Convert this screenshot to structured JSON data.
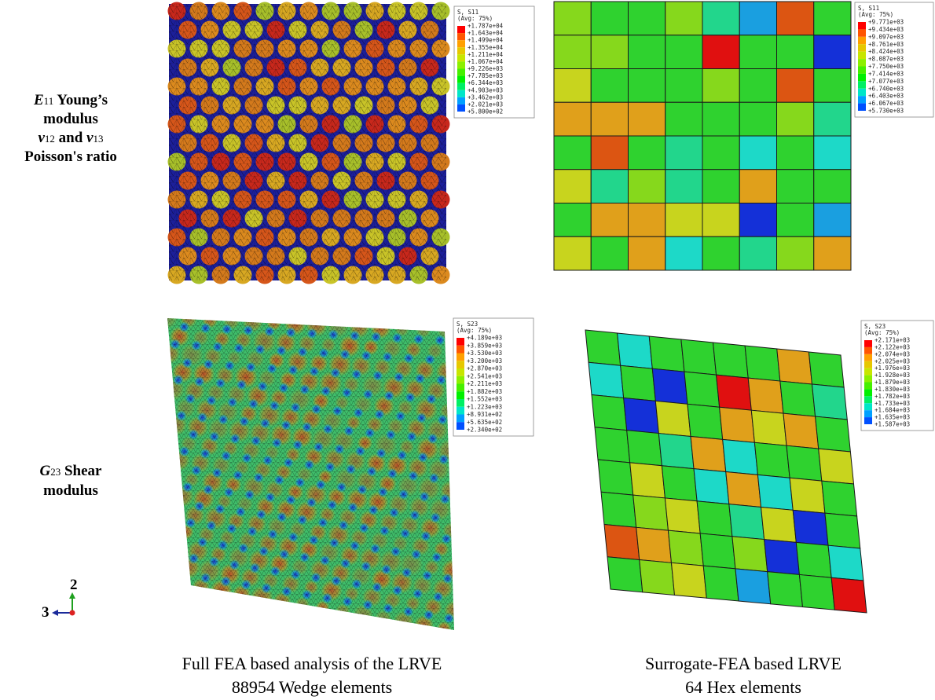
{
  "row_labels": [
    {
      "lines": [
        [
          "E",
          "11",
          " Young’s"
        ],
        [
          "modulus"
        ],
        [
          "ν",
          "12",
          " and ",
          "ν",
          "13"
        ],
        [
          "Poisson's ratio"
        ]
      ]
    },
    {
      "lines": [
        [
          "G",
          "23",
          " Shear"
        ],
        [
          "modulus"
        ]
      ]
    }
  ],
  "legends": [
    {
      "title": "S, S11",
      "subtitle": "(Avg: 75%)",
      "labels": [
        "+1.787e+04",
        "+1.643e+04",
        "+1.499e+04",
        "+1.355e+04",
        "+1.211e+04",
        "+1.067e+04",
        "+9.226e+03",
        "+7.785e+03",
        "+6.344e+03",
        "+4.903e+03",
        "+3.462e+03",
        "+2.021e+03",
        "+5.800e+02"
      ]
    },
    {
      "title": "S, S11",
      "subtitle": "(Avg: 75%)",
      "labels": [
        "+9.771e+03",
        "+9.434e+03",
        "+9.097e+03",
        "+8.761e+03",
        "+8.424e+03",
        "+8.087e+03",
        "+7.750e+03",
        "+7.414e+03",
        "+7.077e+03",
        "+6.740e+03",
        "+6.403e+03",
        "+6.067e+03",
        "+5.730e+03"
      ]
    },
    {
      "title": "S, S23",
      "subtitle": "(Avg: 75%)",
      "labels": [
        "+4.189e+03",
        "+3.859e+03",
        "+3.530e+03",
        "+3.200e+03",
        "+2.870e+03",
        "+2.541e+03",
        "+2.211e+03",
        "+1.882e+03",
        "+1.552e+03",
        "+1.223e+03",
        "+8.931e+02",
        "+5.635e+02",
        "+2.340e+02"
      ]
    },
    {
      "title": "S, S23",
      "subtitle": "(Avg: 75%)",
      "labels": [
        "+2.171e+03",
        "+2.122e+03",
        "+2.074e+03",
        "+2.025e+03",
        "+1.976e+03",
        "+1.928e+03",
        "+1.879e+03",
        "+1.830e+03",
        "+1.782e+03",
        "+1.733e+03",
        "+1.684e+03",
        "+1.635e+03",
        "+1.587e+03"
      ]
    }
  ],
  "axis_triad": {
    "up": "2",
    "left": "3"
  },
  "captions": [
    {
      "lines": [
        "Full FEA based analysis of the LRVE",
        "88954 Wedge elements"
      ]
    },
    {
      "lines": [
        "Surrogate-FEA based LRVE",
        "64 Hex elements"
      ]
    }
  ]
}
